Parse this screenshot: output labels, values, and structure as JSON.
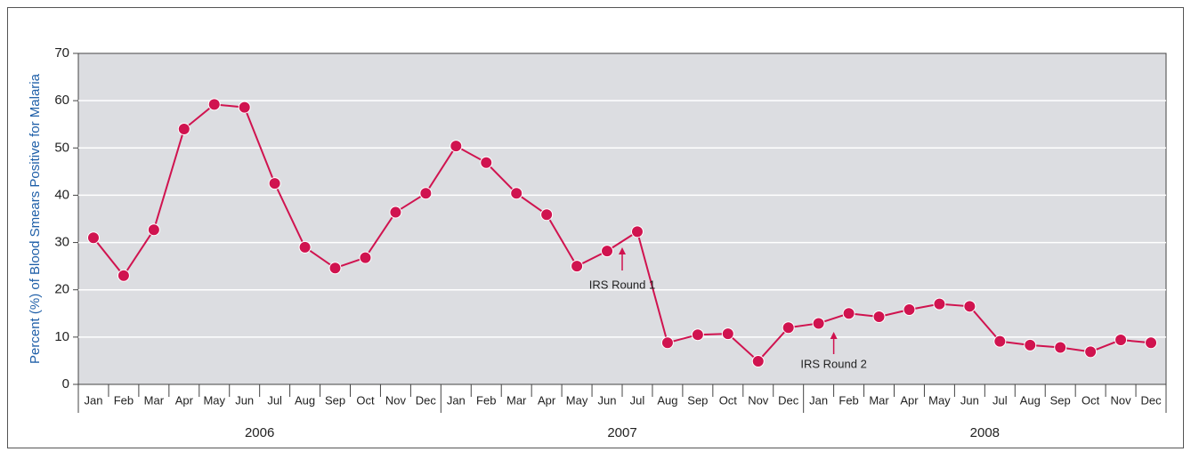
{
  "chart_data": {
    "type": "line",
    "y_axis_label": "Percent (%) of Blood Smears Positive for Malaria",
    "categories": [
      "Jan",
      "Feb",
      "Mar",
      "Apr",
      "May",
      "Jun",
      "Jul",
      "Aug",
      "Sep",
      "Oct",
      "Nov",
      "Dec",
      "Jan",
      "Feb",
      "Mar",
      "Apr",
      "May",
      "Jun",
      "Jul",
      "Aug",
      "Sep",
      "Oct",
      "Nov",
      "Dec",
      "Jan",
      "Feb",
      "Mar",
      "Apr",
      "May",
      "Jun",
      "Jul",
      "Aug",
      "Sep",
      "Oct",
      "Nov",
      "Dec"
    ],
    "groups": [
      "2006",
      "2007",
      "2008"
    ],
    "series": [
      {
        "color": "#d0134f",
        "values": [
          31,
          23,
          32.7,
          54,
          59.2,
          58.6,
          42.5,
          29,
          24.6,
          26.8,
          36.4,
          40.4,
          50.4,
          46.9,
          40.4,
          35.9,
          25,
          28.2,
          32.3,
          8.8,
          10.5,
          10.7,
          4.9,
          12,
          12.9,
          15,
          14.3,
          15.8,
          17,
          16.5,
          9.1,
          8.3,
          7.8,
          6.9,
          9.4,
          8.8
        ]
      }
    ],
    "annotations": [
      "IRS Round 1",
      "IRS Round 2"
    ],
    "ylim": [
      0,
      70
    ],
    "yticks": [
      0,
      10,
      20,
      30,
      40,
      50,
      60,
      70
    ],
    "grid": true
  }
}
